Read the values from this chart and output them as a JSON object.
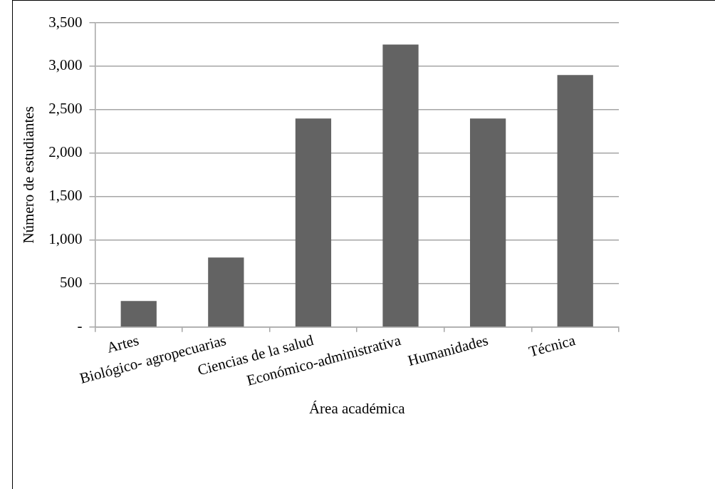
{
  "chart_data": {
    "type": "bar",
    "xlabel": "Área académica",
    "ylabel": "Número de estudiantes",
    "categories": [
      "Artes",
      "Biológico- agropecuarias",
      "Ciencias de la salud",
      "Económico-administrativa",
      "Humanidades",
      "Técnica"
    ],
    "values": [
      300,
      800,
      2400,
      3250,
      2400,
      2900
    ],
    "color": "#636363",
    "ylim": [
      0,
      3500
    ],
    "yticks": [
      {
        "value": 0,
        "label": "-"
      },
      {
        "value": 500,
        "label": "500"
      },
      {
        "value": 1000,
        "label": "1,000"
      },
      {
        "value": 1500,
        "label": "1,500"
      },
      {
        "value": 2000,
        "label": "2,000"
      },
      {
        "value": 2500,
        "label": "2,500"
      },
      {
        "value": 3000,
        "label": "3,000"
      },
      {
        "value": 3500,
        "label": "3,500"
      }
    ],
    "grid": "y",
    "legend": false
  }
}
